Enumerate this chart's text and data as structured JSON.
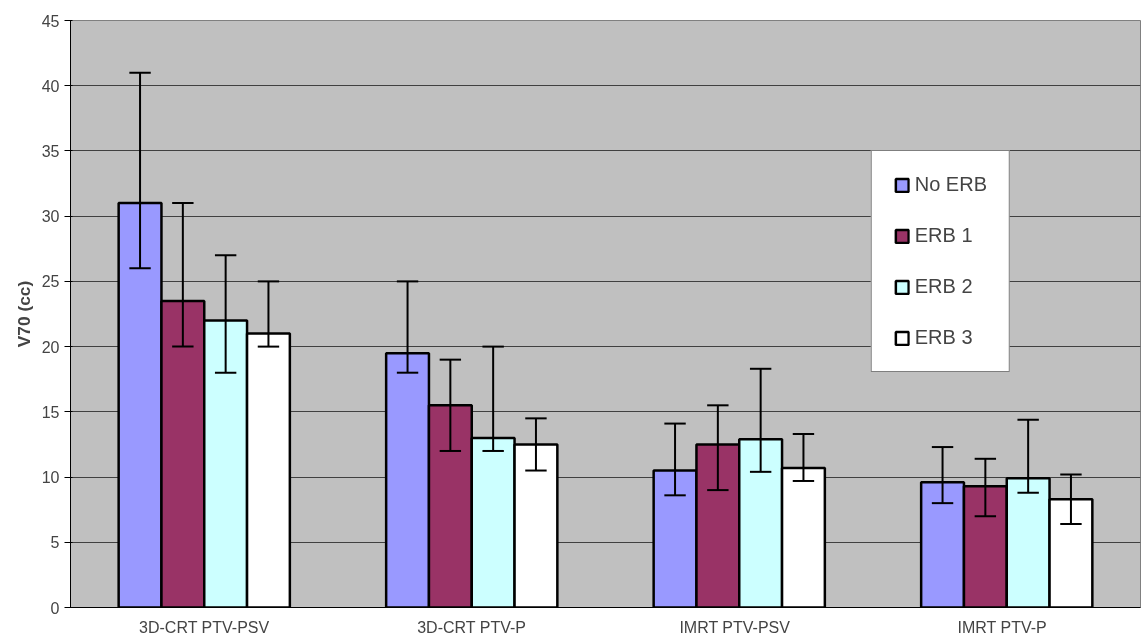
{
  "chart_data": {
    "type": "bar",
    "ylabel": "V70 (cc)",
    "categories": [
      "3D-CRT PTV-PSV",
      "3D-CRT PTV-P",
      "IMRT   PTV-PSV",
      "IMRT   PTV-P"
    ],
    "series": [
      {
        "name": "No ERB",
        "color": "#9999ff",
        "values": [
          31,
          19.5,
          10.5,
          9.6
        ],
        "errors": [
          [
            26,
            41
          ],
          [
            18,
            25
          ],
          [
            8.6,
            14.1
          ],
          [
            8.0,
            12.3
          ]
        ]
      },
      {
        "name": "ERB 1",
        "color": "#993366",
        "values": [
          23.5,
          15.5,
          12.5,
          9.3
        ],
        "errors": [
          [
            20,
            31
          ],
          [
            12,
            19
          ],
          [
            9,
            15.5
          ],
          [
            7.0,
            11.4
          ]
        ]
      },
      {
        "name": "ERB 2",
        "color": "#ccffff",
        "values": [
          22,
          13,
          12.9,
          9.9
        ],
        "errors": [
          [
            18,
            27
          ],
          [
            12,
            20
          ],
          [
            10.4,
            18.3
          ],
          [
            8.8,
            14.4
          ]
        ]
      },
      {
        "name": "ERB 3",
        "color": "#ffffff",
        "values": [
          21,
          12.5,
          10.7,
          8.3
        ],
        "errors": [
          [
            20,
            25
          ],
          [
            10.5,
            14.5
          ],
          [
            9.7,
            13.3
          ],
          [
            6.4,
            10.2
          ]
        ]
      }
    ],
    "ylim": [
      0,
      45
    ],
    "yticks": [
      0,
      5,
      10,
      15,
      20,
      25,
      30,
      35,
      40,
      45
    ],
    "grid": "y",
    "legend": "top right"
  }
}
